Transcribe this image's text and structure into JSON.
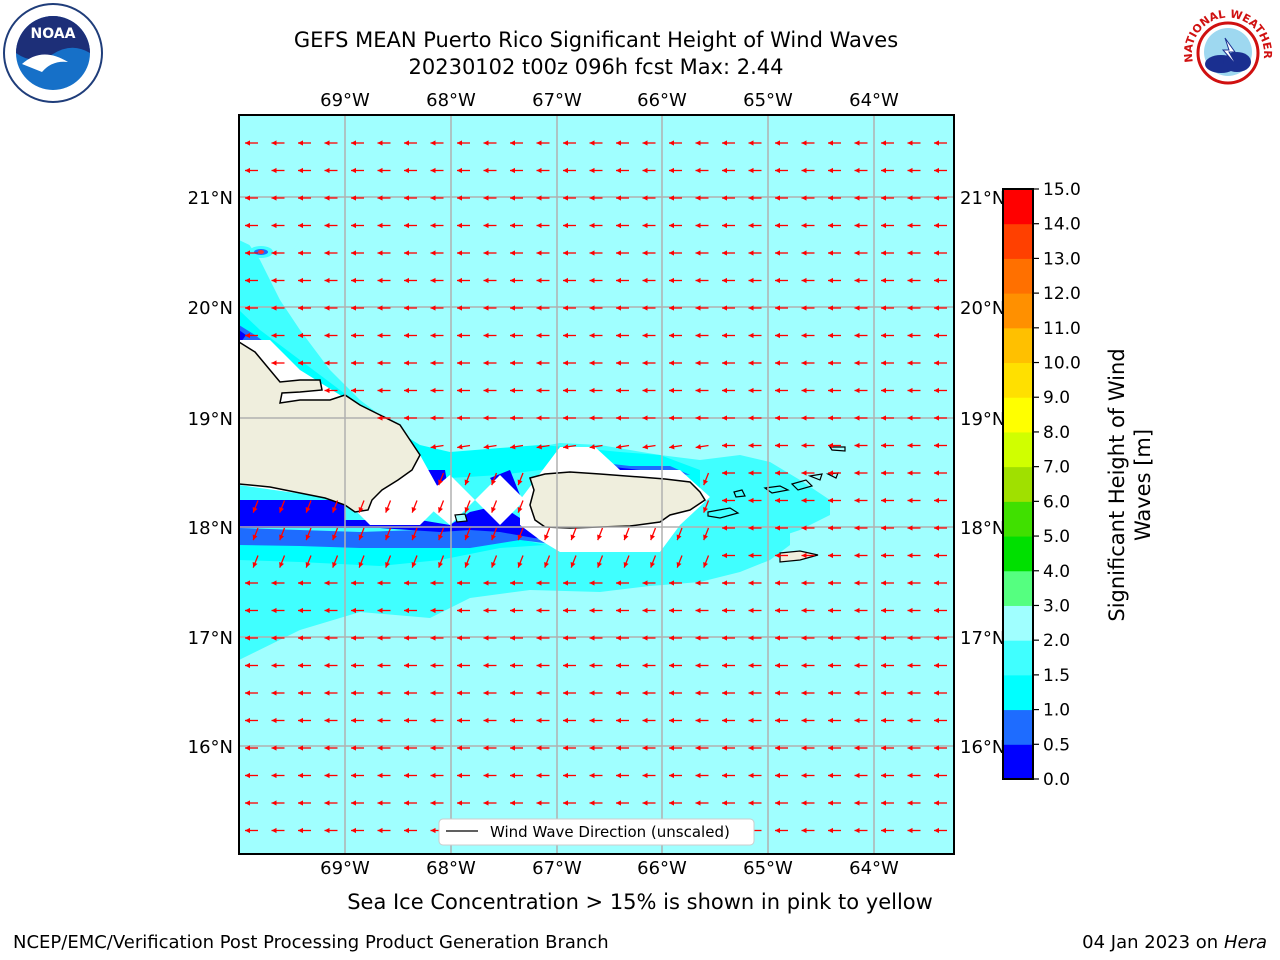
{
  "header": {
    "title_line1": "GEFS MEAN Puerto Rico Significant Height of Wind Waves",
    "title_line2": "20230102 t00z 096h fcst   Max: 2.44"
  },
  "map": {
    "lon_labels": [
      "69°W",
      "68°W",
      "67°W",
      "66°W",
      "65°W",
      "64°W"
    ],
    "lat_labels": [
      "21°N",
      "20°N",
      "19°N",
      "18°N",
      "17°N",
      "16°N"
    ],
    "legend_label": "Wind Wave Direction (unscaled)",
    "arrow_color": "#ff0000",
    "ocean_color": "#a0ffff",
    "land_color": "#efeedd"
  },
  "colorbar": {
    "title_line1": "Significant Height of Wind",
    "title_line2": "Waves [m]",
    "tick_labels": [
      "0.0",
      "0.5",
      "1.0",
      "1.5",
      "2.0",
      "3.0",
      "4.0",
      "5.0",
      "6.0",
      "7.0",
      "8.0",
      "9.0",
      "10.0",
      "11.0",
      "12.0",
      "13.0",
      "14.0",
      "15.0"
    ],
    "colors": [
      "#0000ff",
      "#1e6cff",
      "#00ffff",
      "#40ffff",
      "#a0ffff",
      "#55ff80",
      "#00e000",
      "#40e000",
      "#a0e000",
      "#d0ff00",
      "#ffff00",
      "#ffe000",
      "#ffc000",
      "#ff9000",
      "#ff7000",
      "#ff4000",
      "#ff0000"
    ]
  },
  "notes": {
    "sea_ice": "Sea Ice Concentration > 15% is shown in pink to yellow"
  },
  "footer": {
    "left": "NCEP/EMC/Verification Post Processing Product Generation Branch",
    "right_date": "04 Jan 2023 on",
    "right_machine": "Hera"
  },
  "logos": {
    "noaa_text": "NOAA",
    "nws_text": "NATIONAL WEATHER SERVICE"
  }
}
